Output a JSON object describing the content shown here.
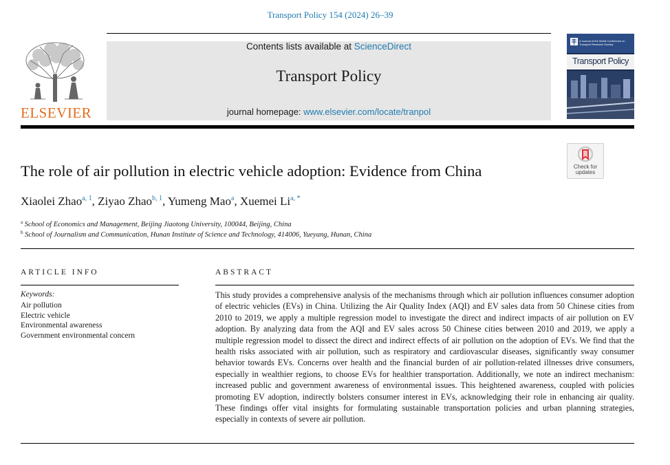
{
  "header": {
    "citation": "Transport Policy 154 (2024) 26–39",
    "contents_prefix": "Contents lists available at ",
    "contents_link": "ScienceDirect",
    "journal_title": "Transport Policy",
    "homepage_prefix": "journal homepage: ",
    "homepage_link": "www.elsevier.com/locate/tranpol",
    "publisher": "ELSEVIER",
    "cover_title": "Transport Policy",
    "cover_subtitle": "A Journal of the World Conference on Transport Research Society",
    "crossmark_label_1": "Check for",
    "crossmark_label_2": "updates"
  },
  "article": {
    "title": "The role of air pollution in electric vehicle adoption: Evidence from China",
    "authors": [
      {
        "name": "Xiaolei Zhao",
        "sup": "a, 1",
        "sep": ", "
      },
      {
        "name": "Ziyao Zhao",
        "sup": "b, 1",
        "sep": ", "
      },
      {
        "name": "Yumeng Mao",
        "sup": "a",
        "sep": ", "
      },
      {
        "name": "Xuemei Li",
        "sup": "a, *",
        "sep": ""
      }
    ],
    "affiliations": [
      {
        "key": "a",
        "text": "School of Economics and Management, Beijing Jiaotong University, 100044, Beijing, China"
      },
      {
        "key": "b",
        "text": "School of Journalism and Communication, Hunan Institute of Science and Technology, 414006, Yueyang, Hunan, China"
      }
    ]
  },
  "article_info": {
    "heading": "ARTICLE INFO",
    "keywords_label": "Keywords:",
    "keywords": [
      "Air pollution",
      "Electric vehicle",
      "Environmental awareness",
      "Government environmental concern"
    ]
  },
  "abstract": {
    "heading": "ABSTRACT",
    "text": "This study provides a comprehensive analysis of the mechanisms through which air pollution influences consumer adoption of electric vehicles (EVs) in China. Utilizing the Air Quality Index (AQI) and EV sales data from 50 Chinese cities from 2010 to 2019, we apply a multiple regression model to investigate the direct and indirect impacts of air pollution on EV adoption. By analyzing data from the AQI and EV sales across 50 Chinese cities between 2010 and 2019, we apply a multiple regression model to dissect the direct and indirect effects of air pollution on the adoption of EVs. We find that the health risks associated with air pollution, such as respiratory and cardiovascular diseases, significantly sway consumer behavior towards EVs. Concerns over health and the financial burden of air pollution-related illnesses drive consumers, especially in wealthier regions, to choose EVs for healthier transportation. Additionally, we note an indirect mechanism: increased public and government awareness of environmental issues. This heightened awareness, coupled with policies promoting EV adoption, indirectly bolsters consumer interest in EVs, acknowledging their role in enhancing air quality. These findings offer vital insights for formulating sustainable transportation policies and urban planning strategies, especially in contexts of severe air pollution."
  },
  "colors": {
    "link": "#1f7ab0",
    "publisher_orange": "#e36c1d",
    "journal_box": "#e6e6e6",
    "cover_navy": "#1b2d4f"
  }
}
